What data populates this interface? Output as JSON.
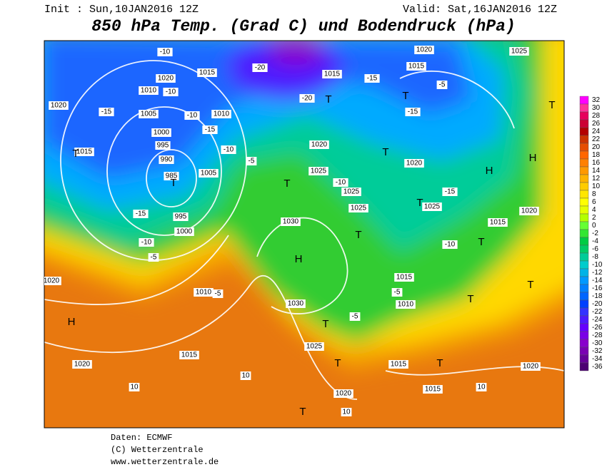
{
  "header": {
    "init": "Init : Sun,10JAN2016 12Z",
    "valid": "Valid: Sat,16JAN2016 12Z",
    "title": "850 hPa Temp. (Grad C) und Bodendruck (hPa)"
  },
  "map_labels": [
    "1020",
    "1015",
    "1010",
    "1005",
    "1000",
    "995",
    "990",
    "985",
    "995",
    "1000",
    "1005",
    "1010",
    "1015",
    "1020",
    "1020",
    "1025",
    "1030",
    "1030",
    "1025",
    "1020",
    "1015",
    "1010",
    "1020",
    "1020",
    "1015",
    "1015",
    "1020",
    "1020",
    "1025",
    "1020",
    "1015",
    "1015",
    "1015",
    "1015",
    "1010",
    "1025",
    "1025",
    "1025",
    "1020",
    "-10",
    "-10",
    "-10",
    "-15",
    "-15",
    "-10",
    "-5",
    "-5",
    "10",
    "10",
    "10",
    "10",
    "-5",
    "-20",
    "-20",
    "-15",
    "-15",
    "-15",
    "-5",
    "-10",
    "-10",
    "-5",
    "-5",
    "-10",
    "-15",
    "H",
    "H",
    "H",
    "H",
    "T",
    "T",
    "T",
    "T",
    "T",
    "T",
    "T",
    "T",
    "T",
    "T",
    "T",
    "T",
    "T",
    "T",
    "T",
    "T"
  ],
  "colorbar": {
    "ticks": [
      32,
      30,
      28,
      26,
      24,
      22,
      20,
      18,
      16,
      14,
      12,
      10,
      8,
      6,
      4,
      2,
      0,
      -2,
      -4,
      -6,
      -8,
      -10,
      -12,
      -14,
      -16,
      -18,
      -20,
      -22,
      -24,
      -26,
      -28,
      -30,
      -32,
      -34,
      -36
    ],
    "colors": [
      "#ff00ff",
      "#ff3399",
      "#e6005c",
      "#cc0033",
      "#b30000",
      "#cc3300",
      "#e64d00",
      "#ff6600",
      "#ff8000",
      "#ff9900",
      "#ffb300",
      "#ffcc00",
      "#ffe600",
      "#ffff00",
      "#e6ff00",
      "#b3ff00",
      "#66ff33",
      "#33e633",
      "#00cc44",
      "#00cc66",
      "#00cc99",
      "#00cccc",
      "#00b3e6",
      "#0099ff",
      "#0080ff",
      "#0066ff",
      "#0040ff",
      "#3333ff",
      "#4d1aff",
      "#6600ff",
      "#7a00e6",
      "#8800cc",
      "#7a00b3",
      "#660099",
      "#4d0073"
    ]
  },
  "footer": [
    "Daten: ECMWF",
    "(C) Wetterzentrale",
    "www.wetterzentrale.de"
  ]
}
